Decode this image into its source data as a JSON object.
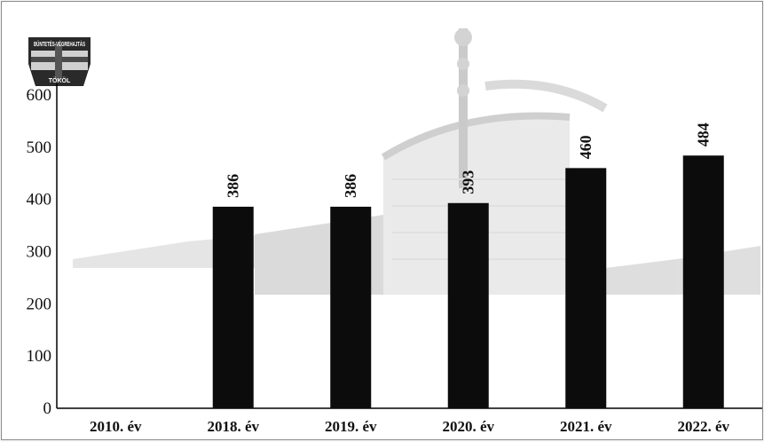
{
  "logo": {
    "top_text": "BÜNTETÉS-VÉGREHAJTÁS",
    "bottom_text": "TÖKÖL"
  },
  "chart_data": {
    "type": "bar",
    "title": "",
    "xlabel": "",
    "ylabel": "",
    "categories": [
      "2010. év",
      "2018. év",
      "2019. év",
      "2020. év",
      "2021. év",
      "2022. év"
    ],
    "values": [
      null,
      386,
      386,
      393,
      460,
      484
    ],
    "value_labels": [
      "",
      "386",
      "386",
      "393",
      "460",
      "484"
    ],
    "ylim": [
      0,
      600
    ],
    "yticks": [
      0,
      100,
      200,
      300,
      400,
      500,
      600
    ],
    "grid": false,
    "legend": "none",
    "bar_color": "#0c0c0c",
    "background_image": "building-photo"
  }
}
